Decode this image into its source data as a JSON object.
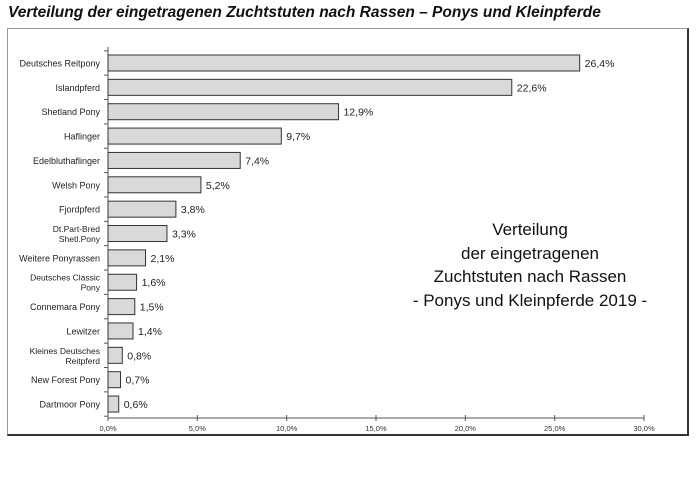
{
  "title": "Verteilung der eingetragenen Zuchtstuten nach Rassen – Ponys und Kleinpferde",
  "annotation": [
    "Verteilung",
    "der eingetragenen",
    "Zuchtstuten nach Rassen",
    "- Ponys und Kleinpferde 2019 -"
  ],
  "chart_data": {
    "type": "bar",
    "orientation": "horizontal",
    "categories": [
      [
        "Deutsches Reitpony"
      ],
      [
        "Islandpferd"
      ],
      [
        "Shetland Pony"
      ],
      [
        "Haflinger"
      ],
      [
        "Edelbluthaflinger"
      ],
      [
        "Welsh Pony"
      ],
      [
        "Fjordpferd"
      ],
      [
        "Dt.Part-Bred",
        "Shetl.Pony"
      ],
      [
        "Weitere Ponyrassen"
      ],
      [
        "Deutsches Classic",
        "Pony"
      ],
      [
        "Connemara Pony"
      ],
      [
        "Lewitzer"
      ],
      [
        "Kleines Deutsches",
        "Reitpferd"
      ],
      [
        "New Forest Pony"
      ],
      [
        "Dartmoor Pony"
      ]
    ],
    "values": [
      26.4,
      22.6,
      12.9,
      9.7,
      7.4,
      5.2,
      3.8,
      3.3,
      2.1,
      1.6,
      1.5,
      1.4,
      0.8,
      0.7,
      0.6
    ],
    "data_labels": [
      "26,4%",
      "22,6%",
      "12,9%",
      "9,7%",
      "7,4%",
      "5,2%",
      "3,8%",
      "3,3%",
      "2,1%",
      "1,6%",
      "1,5%",
      "1,4%",
      "0,8%",
      "0,7%",
      "0,6%"
    ],
    "xlim": [
      0,
      30
    ],
    "x_ticks": [
      0,
      5,
      10,
      15,
      20,
      25,
      30
    ],
    "x_tick_labels": [
      "0,0%",
      "5,0%",
      "10,0%",
      "15,0%",
      "20,0%",
      "25,0%",
      "30,0%"
    ],
    "grid": false,
    "bar_color": "#d9d9d9",
    "bar_edge_color": "#333333"
  }
}
